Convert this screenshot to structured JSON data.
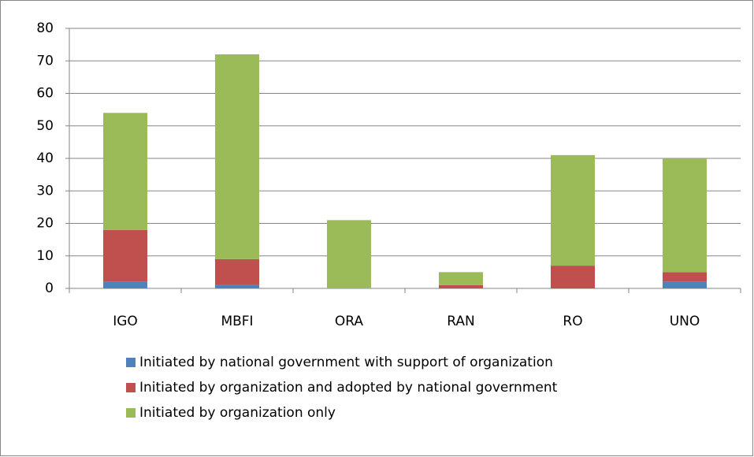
{
  "chart_data": {
    "type": "bar",
    "stacked": true,
    "categories": [
      "IGO",
      "MBFI",
      "ORA",
      "RAN",
      "RO",
      "UNO"
    ],
    "series": [
      {
        "name": "Initiated by national government with support of organization",
        "color": "#4f81bd",
        "values": [
          2,
          1,
          0,
          0,
          0,
          2
        ]
      },
      {
        "name": "Initiated by organization and adopted by national government",
        "color": "#c0504d",
        "values": [
          16,
          8,
          0,
          1,
          7,
          3
        ]
      },
      {
        "name": "Initiated by organization only",
        "color": "#9bbb59",
        "values": [
          36,
          63,
          21,
          4,
          34,
          35
        ]
      }
    ],
    "ylim": [
      0,
      80
    ],
    "yticks": [
      0,
      10,
      20,
      30,
      40,
      50,
      60,
      70,
      80
    ],
    "grid": true,
    "legend": "bottom"
  }
}
